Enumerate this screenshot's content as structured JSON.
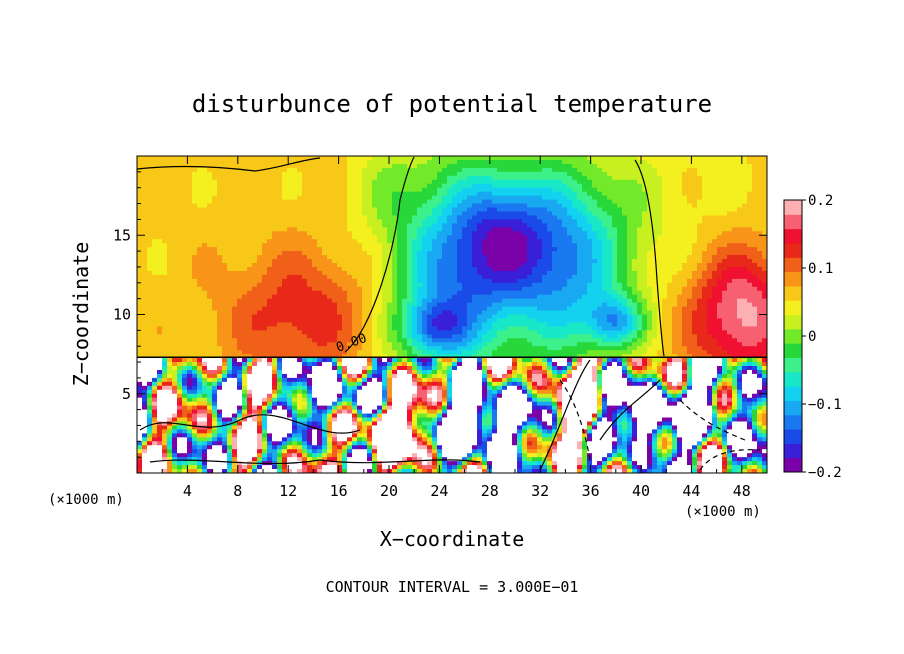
{
  "chart_data": {
    "type": "heatmap",
    "title": "disturbunce of potential temperature",
    "xlabel": "X−coordinate",
    "ylabel": "Z−coordinate",
    "x_unit_left": "(×1000 m)",
    "x_unit_right": "(×1000 m)",
    "xlim": [
      0,
      50
    ],
    "ylim": [
      0,
      20
    ],
    "x_ticks": [
      4,
      8,
      12,
      16,
      20,
      24,
      28,
      32,
      36,
      40,
      44,
      48
    ],
    "y_ticks": [
      5,
      10,
      15
    ],
    "colorbar": {
      "ticks": [
        0.2,
        0.1,
        0,
        -0.1,
        -0.2
      ],
      "tick_labels": [
        "0.2",
        "0.1",
        "0",
        "−0.1",
        "−0.2"
      ],
      "range": [
        -0.2,
        0.2
      ],
      "colors": [
        "#7a00a8",
        "#3a1fd8",
        "#1a4ae8",
        "#1a78f0",
        "#19a8f2",
        "#12d2f0",
        "#18e8c8",
        "#3cf08a",
        "#28d83a",
        "#72ea2a",
        "#c8f020",
        "#f4f020",
        "#f8c818",
        "#f89418",
        "#f06018",
        "#e82818",
        "#f01030",
        "#f66070",
        "#fcb0b4"
      ]
    },
    "contour_label": "0.00",
    "footnote": "CONTOUR INTERVAL = 3.000E−01"
  }
}
